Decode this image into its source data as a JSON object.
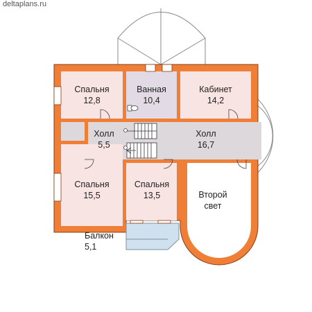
{
  "watermark": "deltaplans.ru",
  "colors": {
    "wall": "#ef7f36",
    "wall_edge": "#8a3c12",
    "room_pink": "#f8e4e3",
    "room_lavender": "#e2dbe6",
    "hall": "#dcd8dc",
    "balcony": "#cfe0ee",
    "window": "#ffffff"
  },
  "rooms": [
    {
      "name": "Спальня",
      "area": "12,8"
    },
    {
      "name": "Ванная",
      "area": "10,4"
    },
    {
      "name": "Кабинет",
      "area": "14,2"
    },
    {
      "name": "Холл",
      "area": "5,5"
    },
    {
      "name": "Холл",
      "area": "16,7"
    },
    {
      "name": "Спальня",
      "area": "15,5"
    },
    {
      "name": "Спальня",
      "area": "13,5"
    },
    {
      "name": "Второй",
      "area": "свет"
    },
    {
      "name": "Балкон",
      "area": "5,1"
    }
  ]
}
